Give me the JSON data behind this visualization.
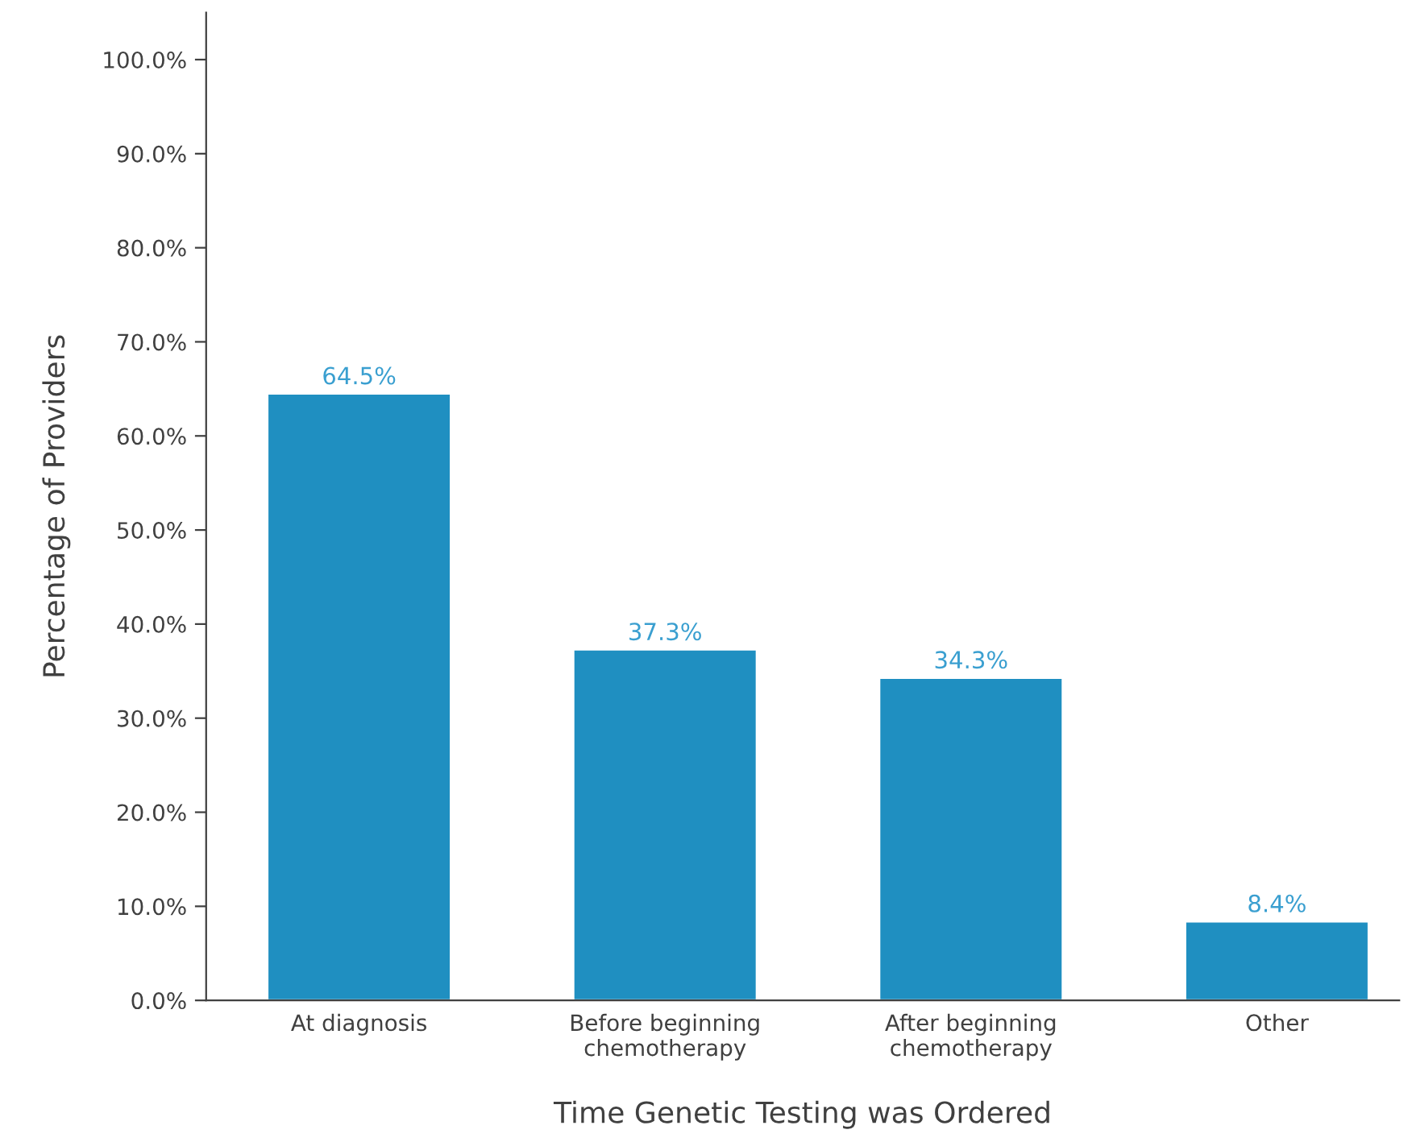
{
  "chart_data": {
    "type": "bar",
    "xlabel": "Time Genetic Testing was Ordered",
    "ylabel": "Percentage of Providers",
    "categories": [
      "At diagnosis",
      "Before beginning\nchemotherapy",
      "After beginning\nchemotherapy",
      "Other"
    ],
    "values": [
      64.5,
      37.3,
      34.3,
      8.4
    ],
    "color": "#1f8fc1",
    "value_labels": [
      "64.5%",
      "37.3%",
      "34.3%",
      "8.4%"
    ],
    "ylim": [
      0,
      105
    ],
    "yticks": [
      {
        "value": 0,
        "label": "0.0%"
      },
      {
        "value": 10,
        "label": "10.0%"
      },
      {
        "value": 20,
        "label": "20.0%"
      },
      {
        "value": 30,
        "label": "30.0%"
      },
      {
        "value": 40,
        "label": "40.0%"
      },
      {
        "value": 50,
        "label": "50.0%"
      },
      {
        "value": 60,
        "label": "60.0%"
      },
      {
        "value": 70,
        "label": "70.0%"
      },
      {
        "value": 80,
        "label": "80.0%"
      },
      {
        "value": 90,
        "label": "90.0%"
      },
      {
        "value": 100,
        "label": "100.0%"
      }
    ],
    "grid": false,
    "legend": false
  }
}
